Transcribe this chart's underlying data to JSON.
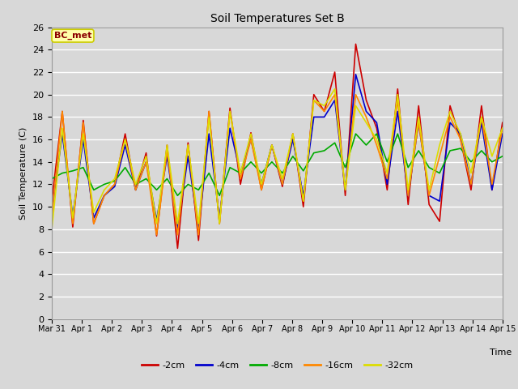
{
  "title": "Soil Temperatures Set B",
  "xlabel": "Time",
  "ylabel": "Soil Temperature (C)",
  "annotation_label": "BC_met",
  "fig_facecolor": "#d8d8d8",
  "ax_facecolor": "#d8d8d8",
  "ylim": [
    0,
    26
  ],
  "yticks": [
    0,
    2,
    4,
    6,
    8,
    10,
    12,
    14,
    16,
    18,
    20,
    22,
    24,
    26
  ],
  "x_labels": [
    "Mar 31",
    "Apr 1",
    "Apr 2",
    "Apr 3",
    "Apr 4",
    "Apr 5",
    "Apr 6",
    "Apr 7",
    "Apr 8",
    "Apr 9",
    "Apr 10",
    "Apr 11",
    "Apr 12",
    "Apr 13",
    "Apr 14",
    "Apr 15"
  ],
  "series_colors": [
    "#cc0000",
    "#0000cc",
    "#00aa00",
    "#ff8800",
    "#dddd00"
  ],
  "series_labels": [
    "-2cm",
    "-4cm",
    "-8cm",
    "-16cm",
    "-32cm"
  ],
  "linewidth": 1.2,
  "d2cm": [
    10.5,
    18.5,
    8.2,
    17.7,
    8.5,
    11.0,
    12.0,
    16.5,
    11.5,
    14.8,
    7.4,
    15.5,
    6.3,
    15.7,
    7.0,
    18.5,
    8.5,
    18.8,
    12.0,
    16.6,
    11.5,
    15.5,
    11.8,
    16.5,
    10.0,
    20.0,
    18.5,
    22.0,
    11.0,
    24.5,
    19.5,
    17.0,
    11.5,
    20.5,
    10.2,
    19.0,
    10.2,
    8.7,
    19.0,
    16.0,
    11.5,
    19.0,
    11.5,
    17.5
  ],
  "d4cm": [
    9.5,
    16.5,
    9.2,
    16.0,
    9.0,
    11.0,
    11.8,
    15.5,
    11.5,
    14.0,
    8.8,
    14.5,
    8.0,
    14.5,
    8.0,
    16.5,
    9.0,
    17.0,
    13.0,
    16.0,
    12.0,
    15.5,
    12.0,
    16.0,
    11.0,
    18.0,
    18.0,
    19.5,
    11.5,
    21.8,
    18.5,
    17.5,
    12.0,
    18.5,
    11.0,
    17.5,
    11.0,
    10.5,
    17.5,
    16.5,
    12.0,
    17.5,
    11.5,
    16.5
  ],
  "d8cm": [
    12.5,
    13.0,
    13.2,
    13.5,
    11.5,
    12.0,
    12.3,
    13.5,
    12.0,
    12.5,
    11.5,
    12.5,
    11.0,
    12.0,
    11.5,
    13.0,
    11.0,
    13.5,
    13.0,
    14.0,
    13.0,
    14.0,
    13.0,
    14.5,
    13.2,
    14.8,
    15.0,
    15.7,
    13.5,
    16.5,
    15.5,
    16.5,
    14.0,
    16.5,
    13.5,
    15.0,
    13.5,
    13.0,
    15.0,
    15.2,
    14.0,
    15.0,
    14.0,
    14.5
  ],
  "d16cm": [
    9.0,
    18.5,
    8.5,
    17.5,
    8.5,
    11.0,
    12.0,
    16.0,
    11.5,
    14.0,
    7.5,
    15.0,
    7.5,
    15.5,
    7.5,
    18.5,
    8.5,
    18.5,
    12.5,
    16.0,
    11.5,
    15.5,
    12.0,
    16.5,
    10.5,
    19.5,
    18.5,
    20.0,
    11.5,
    20.0,
    18.0,
    15.5,
    12.5,
    19.5,
    11.0,
    17.5,
    11.0,
    14.5,
    18.0,
    16.0,
    12.0,
    18.0,
    12.0,
    17.0
  ],
  "d32cm": [
    8.0,
    17.0,
    9.0,
    16.5,
    9.5,
    11.5,
    12.5,
    16.0,
    12.0,
    14.5,
    8.5,
    15.5,
    8.5,
    15.5,
    8.5,
    18.0,
    8.5,
    18.5,
    13.0,
    16.5,
    12.0,
    15.5,
    12.5,
    16.5,
    10.5,
    19.5,
    19.0,
    20.5,
    11.5,
    19.0,
    17.5,
    16.0,
    13.0,
    20.0,
    11.5,
    18.0,
    11.5,
    15.5,
    18.5,
    16.5,
    13.0,
    18.0,
    14.5,
    17.0
  ]
}
